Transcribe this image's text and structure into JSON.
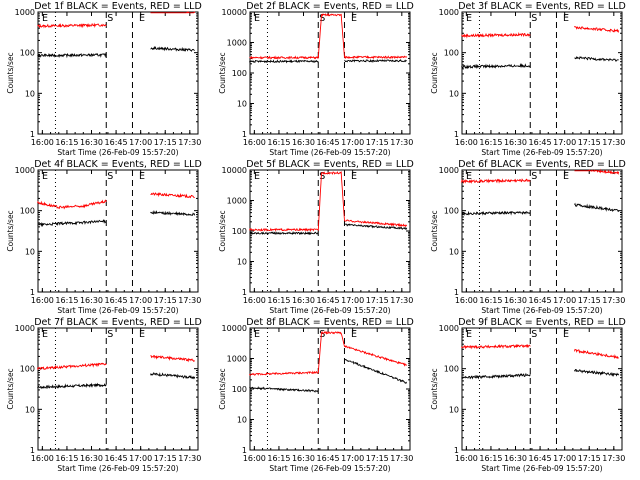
{
  "chart_data": [
    {
      "type": "line",
      "title": "Det 1f BLACK = Events, RED = LLD",
      "xlabel": "Start Time (26-Feb-09 15:57:20)",
      "ylabel": "Counts/sec",
      "yscale": "log",
      "ylim": [
        1,
        1000
      ],
      "xticks": [
        "16:00",
        "16:15",
        "16:30",
        "16:45",
        "17:00",
        "17:15",
        "17:30"
      ],
      "yticks": [
        "1",
        "10",
        "100",
        "1000"
      ],
      "markers": [
        "E",
        "S",
        "E"
      ],
      "series": [
        {
          "color": "#ff0000",
          "segments": [
            [
              {
                "t": "15:57",
                "y": 450
              },
              {
                "t": "16:39",
                "y": 480
              }
            ],
            [
              {
                "t": "17:06",
                "y": 1100
              },
              {
                "t": "17:33",
                "y": 1050
              }
            ]
          ]
        },
        {
          "color": "#000000",
          "segments": [
            [
              {
                "t": "15:57",
                "y": 85
              },
              {
                "t": "16:39",
                "y": 88
              }
            ],
            [
              {
                "t": "17:06",
                "y": 130
              },
              {
                "t": "17:33",
                "y": 115
              }
            ]
          ]
        }
      ]
    },
    {
      "type": "line",
      "title": "Det 2f BLACK = Events, RED = LLD",
      "xlabel": "Start Time (26-Feb-09 15:57:20)",
      "ylabel": "Counts/sec",
      "yscale": "log",
      "ylim": [
        1,
        10000
      ],
      "xticks": [
        "16:00",
        "16:15",
        "16:30",
        "16:45",
        "17:00",
        "17:15",
        "17:30"
      ],
      "yticks": [
        "1",
        "10",
        "100",
        "1000",
        "10000"
      ],
      "markers": [
        "E",
        "S",
        "E"
      ],
      "series": [
        {
          "color": "#ff0000",
          "segments": [
            [
              {
                "t": "15:57",
                "y": 320
              },
              {
                "t": "16:39",
                "y": 320
              },
              {
                "t": "16:41",
                "y": 8000
              },
              {
                "t": "16:53",
                "y": 8000
              },
              {
                "t": "16:55",
                "y": 330
              },
              {
                "t": "17:33",
                "y": 330
              }
            ]
          ]
        },
        {
          "color": "#000000",
          "segments": [
            [
              {
                "t": "15:57",
                "y": 240
              },
              {
                "t": "16:39",
                "y": 240
              }
            ],
            [
              {
                "t": "16:55",
                "y": 250
              },
              {
                "t": "17:33",
                "y": 250
              }
            ]
          ]
        }
      ]
    },
    {
      "type": "line",
      "title": "Det 3f BLACK = Events, RED = LLD",
      "xlabel": "Start Time (26-Feb-09 15:57:20)",
      "ylabel": "Counts/sec",
      "yscale": "log",
      "ylim": [
        1,
        1000
      ],
      "xticks": [
        "16:00",
        "16:15",
        "16:30",
        "16:45",
        "17:00",
        "17:15",
        "17:30"
      ],
      "yticks": [
        "1",
        "10",
        "100",
        "1000"
      ],
      "markers": [
        "E",
        "S",
        "E"
      ],
      "series": [
        {
          "color": "#ff0000",
          "segments": [
            [
              {
                "t": "15:57",
                "y": 260
              },
              {
                "t": "16:39",
                "y": 280
              }
            ],
            [
              {
                "t": "17:06",
                "y": 420
              },
              {
                "t": "17:33",
                "y": 340
              }
            ]
          ]
        },
        {
          "color": "#000000",
          "segments": [
            [
              {
                "t": "15:57",
                "y": 45
              },
              {
                "t": "16:39",
                "y": 48
              }
            ],
            [
              {
                "t": "17:06",
                "y": 75
              },
              {
                "t": "17:33",
                "y": 65
              }
            ]
          ]
        }
      ]
    },
    {
      "type": "line",
      "title": "Det 4f BLACK = Events, RED = LLD",
      "xlabel": "Start Time (26-Feb-09 15:57:20)",
      "ylabel": "Counts/sec",
      "yscale": "log",
      "ylim": [
        1,
        1000
      ],
      "xticks": [
        "16:00",
        "16:15",
        "16:30",
        "16:45",
        "17:00",
        "17:15",
        "17:30"
      ],
      "yticks": [
        "1",
        "10",
        "100",
        "1000"
      ],
      "markers": [
        "E",
        "S",
        "E"
      ],
      "series": [
        {
          "color": "#ff0000",
          "segments": [
            [
              {
                "t": "15:57",
                "y": 160
              },
              {
                "t": "16:10",
                "y": 120
              },
              {
                "t": "16:25",
                "y": 130
              },
              {
                "t": "16:39",
                "y": 170
              }
            ],
            [
              {
                "t": "17:06",
                "y": 260
              },
              {
                "t": "17:33",
                "y": 220
              }
            ]
          ]
        },
        {
          "color": "#000000",
          "segments": [
            [
              {
                "t": "15:57",
                "y": 45
              },
              {
                "t": "16:39",
                "y": 55
              }
            ],
            [
              {
                "t": "17:06",
                "y": 90
              },
              {
                "t": "17:33",
                "y": 80
              }
            ]
          ]
        }
      ]
    },
    {
      "type": "line",
      "title": "Det 5f BLACK = Events, RED = LLD",
      "xlabel": "Start Time (26-Feb-09 15:57:20)",
      "ylabel": "Counts/sec",
      "yscale": "log",
      "ylim": [
        1,
        10000
      ],
      "xticks": [
        "16:00",
        "16:15",
        "16:30",
        "16:45",
        "17:00",
        "17:15",
        "17:30"
      ],
      "yticks": [
        "1",
        "10",
        "100",
        "1000",
        "10000"
      ],
      "markers": [
        "E",
        "S",
        "E"
      ],
      "series": [
        {
          "color": "#ff0000",
          "segments": [
            [
              {
                "t": "15:57",
                "y": 110
              },
              {
                "t": "16:39",
                "y": 110
              },
              {
                "t": "16:41",
                "y": 8000
              },
              {
                "t": "16:53",
                "y": 8000
              },
              {
                "t": "16:55",
                "y": 220
              },
              {
                "t": "17:33",
                "y": 150
              }
            ]
          ]
        },
        {
          "color": "#000000",
          "segments": [
            [
              {
                "t": "15:57",
                "y": 85
              },
              {
                "t": "16:39",
                "y": 85
              }
            ],
            [
              {
                "t": "16:55",
                "y": 160
              },
              {
                "t": "17:33",
                "y": 120
              }
            ]
          ]
        }
      ]
    },
    {
      "type": "line",
      "title": "Det 6f BLACK = Events, RED = LLD",
      "xlabel": "Start Time (26-Feb-09 15:57:20)",
      "ylabel": "Counts/sec",
      "yscale": "log",
      "ylim": [
        1,
        1000
      ],
      "xticks": [
        "16:00",
        "16:15",
        "16:30",
        "16:45",
        "17:00",
        "17:15",
        "17:30"
      ],
      "yticks": [
        "1",
        "10",
        "100",
        "1000"
      ],
      "markers": [
        "E",
        "S",
        "E"
      ],
      "series": [
        {
          "color": "#ff0000",
          "segments": [
            [
              {
                "t": "15:57",
                "y": 520
              },
              {
                "t": "16:39",
                "y": 560
              }
            ],
            [
              {
                "t": "17:06",
                "y": 1100
              },
              {
                "t": "17:33",
                "y": 850
              }
            ]
          ]
        },
        {
          "color": "#000000",
          "segments": [
            [
              {
                "t": "15:57",
                "y": 85
              },
              {
                "t": "16:39",
                "y": 90
              }
            ],
            [
              {
                "t": "17:06",
                "y": 140
              },
              {
                "t": "17:33",
                "y": 100
              }
            ]
          ]
        }
      ]
    },
    {
      "type": "line",
      "title": "Det 7f BLACK = Events, RED = LLD",
      "xlabel": "Start Time (26-Feb-09 15:57:20)",
      "ylabel": "Counts/sec",
      "yscale": "log",
      "ylim": [
        1,
        1000
      ],
      "xticks": [
        "16:00",
        "16:15",
        "16:30",
        "16:45",
        "17:00",
        "17:15",
        "17:30"
      ],
      "yticks": [
        "1",
        "10",
        "100",
        "1000"
      ],
      "markers": [
        "E",
        "S",
        "E"
      ],
      "series": [
        {
          "color": "#ff0000",
          "segments": [
            [
              {
                "t": "15:57",
                "y": 100
              },
              {
                "t": "16:39",
                "y": 130
              }
            ],
            [
              {
                "t": "17:06",
                "y": 200
              },
              {
                "t": "17:33",
                "y": 160
              }
            ]
          ]
        },
        {
          "color": "#000000",
          "segments": [
            [
              {
                "t": "15:57",
                "y": 35
              },
              {
                "t": "16:39",
                "y": 40
              }
            ],
            [
              {
                "t": "17:06",
                "y": 75
              },
              {
                "t": "17:33",
                "y": 60
              }
            ]
          ]
        }
      ]
    },
    {
      "type": "line",
      "title": "Det 8f BLACK = Events, RED = LLD",
      "xlabel": "Start Time (26-Feb-09 15:57:20)",
      "ylabel": "Counts/sec",
      "yscale": "log",
      "ylim": [
        1,
        10000
      ],
      "xticks": [
        "16:00",
        "16:15",
        "16:30",
        "16:45",
        "17:00",
        "17:15",
        "17:30"
      ],
      "yticks": [
        "1",
        "10",
        "100",
        "1000",
        "10000"
      ],
      "markers": [
        "E",
        "S",
        "E"
      ],
      "series": [
        {
          "color": "#ff0000",
          "segments": [
            [
              {
                "t": "15:57",
                "y": 300
              },
              {
                "t": "16:39",
                "y": 350
              },
              {
                "t": "16:41",
                "y": 7000
              },
              {
                "t": "16:53",
                "y": 7000
              },
              {
                "t": "16:55",
                "y": 2500
              },
              {
                "t": "17:33",
                "y": 600
              }
            ]
          ]
        },
        {
          "color": "#000000",
          "segments": [
            [
              {
                "t": "15:57",
                "y": 110
              },
              {
                "t": "16:39",
                "y": 85
              }
            ],
            [
              {
                "t": "16:55",
                "y": 950
              },
              {
                "t": "17:33",
                "y": 160
              }
            ]
          ]
        }
      ]
    },
    {
      "type": "line",
      "title": "Det 9f BLACK = Events, RED = LLD",
      "xlabel": "Start Time (26-Feb-09 15:57:20)",
      "ylabel": "Counts/sec",
      "yscale": "log",
      "ylim": [
        1,
        1000
      ],
      "xticks": [
        "16:00",
        "16:15",
        "16:30",
        "16:45",
        "17:00",
        "17:15",
        "17:30"
      ],
      "yticks": [
        "1",
        "10",
        "100",
        "1000"
      ],
      "markers": [
        "E",
        "S",
        "E"
      ],
      "series": [
        {
          "color": "#ff0000",
          "segments": [
            [
              {
                "t": "15:57",
                "y": 340
              },
              {
                "t": "16:39",
                "y": 360
              }
            ],
            [
              {
                "t": "17:06",
                "y": 280
              },
              {
                "t": "17:33",
                "y": 190
              }
            ]
          ]
        },
        {
          "color": "#000000",
          "segments": [
            [
              {
                "t": "15:57",
                "y": 60
              },
              {
                "t": "16:39",
                "y": 70
              }
            ],
            [
              {
                "t": "17:06",
                "y": 90
              },
              {
                "t": "17:33",
                "y": 70
              }
            ]
          ]
        }
      ]
    }
  ]
}
